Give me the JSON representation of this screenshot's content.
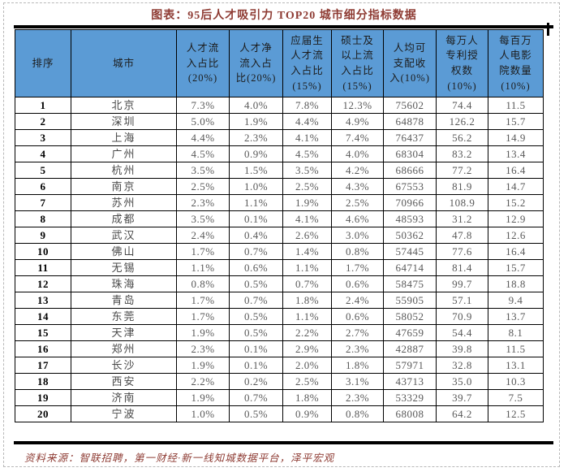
{
  "colors": {
    "header_bg": "#5B9BD5",
    "border": "#000000",
    "title_text": "#8e3b33",
    "body_text": "#595959"
  },
  "chart_data": {
    "type": "table",
    "title": "图表：95后人才吸引力 TOP20 城市细分指标数据",
    "columns": [
      "排序",
      "城市",
      "人才流\n入占比\n(20%)",
      "人才净\n流入占\n比(20%)",
      "应届生\n人才流\n入占比\n(15%)",
      "硕士及\n以上流\n入占比\n(15%)",
      "人均可\n支配收\n入(10%)",
      "每万人\n专利授\n权数\n(10%)",
      "每百万\n人电影\n院数量\n(10%)"
    ],
    "rows": [
      [
        "1",
        "北京",
        "7.3%",
        "4.0%",
        "7.8%",
        "12.3%",
        "75602",
        "74.4",
        "11.5"
      ],
      [
        "2",
        "深圳",
        "5.0%",
        "1.9%",
        "4.4%",
        "4.9%",
        "64878",
        "126.2",
        "15.7"
      ],
      [
        "3",
        "上海",
        "4.4%",
        "2.3%",
        "4.1%",
        "7.4%",
        "76437",
        "56.2",
        "14.9"
      ],
      [
        "4",
        "广州",
        "4.5%",
        "0.9%",
        "4.5%",
        "4.0%",
        "68304",
        "83.2",
        "13.4"
      ],
      [
        "5",
        "杭州",
        "3.5%",
        "1.5%",
        "3.5%",
        "4.2%",
        "68666",
        "77.2",
        "16.4"
      ],
      [
        "6",
        "南京",
        "2.5%",
        "1.0%",
        "2.5%",
        "4.3%",
        "67553",
        "81.9",
        "14.7"
      ],
      [
        "7",
        "苏州",
        "2.3%",
        "1.1%",
        "1.9%",
        "2.5%",
        "70966",
        "108.9",
        "15.2"
      ],
      [
        "8",
        "成都",
        "3.5%",
        "0.1%",
        "4.1%",
        "4.6%",
        "48593",
        "31.2",
        "12.9"
      ],
      [
        "9",
        "武汉",
        "2.4%",
        "0.4%",
        "2.6%",
        "3.0%",
        "50362",
        "47.8",
        "12.6"
      ],
      [
        "10",
        "佛山",
        "1.7%",
        "0.7%",
        "1.4%",
        "0.8%",
        "57445",
        "77.6",
        "16.4"
      ],
      [
        "11",
        "无锡",
        "1.1%",
        "0.6%",
        "1.1%",
        "1.7%",
        "64714",
        "81.4",
        "15.7"
      ],
      [
        "12",
        "珠海",
        "0.8%",
        "0.5%",
        "0.7%",
        "0.6%",
        "58475",
        "99.7",
        "18.8"
      ],
      [
        "13",
        "青岛",
        "1.7%",
        "0.7%",
        "1.8%",
        "2.4%",
        "55905",
        "57.1",
        "9.4"
      ],
      [
        "14",
        "东莞",
        "1.7%",
        "0.5%",
        "1.1%",
        "0.6%",
        "58052",
        "70.9",
        "13.7"
      ],
      [
        "15",
        "天津",
        "1.9%",
        "0.5%",
        "2.2%",
        "2.7%",
        "47659",
        "54.4",
        "8.1"
      ],
      [
        "16",
        "郑州",
        "2.3%",
        "0.1%",
        "2.9%",
        "2.3%",
        "42887",
        "39.8",
        "11.5"
      ],
      [
        "17",
        "长沙",
        "1.9%",
        "0.1%",
        "2.0%",
        "1.8%",
        "57971",
        "32.8",
        "13.1"
      ],
      [
        "18",
        "西安",
        "2.2%",
        "0.2%",
        "2.5%",
        "3.1%",
        "43713",
        "35.0",
        "10.3"
      ],
      [
        "19",
        "济南",
        "1.9%",
        "0.7%",
        "1.8%",
        "2.3%",
        "53329",
        "39.7",
        "7.5"
      ],
      [
        "20",
        "宁波",
        "1.0%",
        "0.5%",
        "0.9%",
        "0.8%",
        "68008",
        "64.2",
        "12.5"
      ]
    ],
    "source": "资料来源：智联招聘，第一财经·新一线知城数据平台，泽平宏观"
  }
}
